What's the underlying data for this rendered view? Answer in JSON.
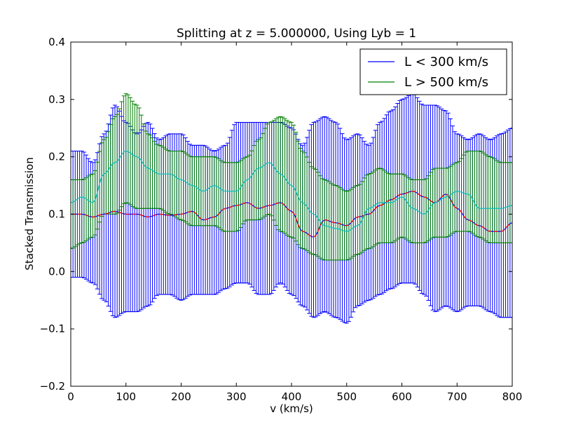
{
  "chart_data": {
    "type": "line",
    "title": "Splitting at z = 5.000000, Using Lyb = 1",
    "xlabel": "v (km/s)",
    "ylabel": "Stacked Transmission",
    "xlim": [
      0,
      800
    ],
    "ylim": [
      -0.2,
      0.4
    ],
    "xticks": [
      0,
      100,
      200,
      300,
      400,
      500,
      600,
      700,
      800
    ],
    "yticks": [
      -0.2,
      -0.1,
      0.0,
      0.1,
      0.2,
      0.3,
      0.4
    ],
    "grid": false,
    "legend_position": "top-right",
    "x": [
      0,
      20,
      40,
      60,
      80,
      100,
      120,
      140,
      160,
      180,
      200,
      220,
      240,
      260,
      280,
      300,
      320,
      340,
      360,
      380,
      400,
      420,
      440,
      460,
      480,
      500,
      520,
      540,
      560,
      580,
      600,
      620,
      640,
      660,
      680,
      700,
      720,
      740,
      760,
      780,
      800
    ],
    "series": [
      {
        "name": "L < 300 km/s",
        "color": "#0000ff",
        "mean": [
          0.1,
          0.1,
          0.095,
          0.1,
          0.105,
          0.1,
          0.1,
          0.095,
          0.1,
          0.098,
          0.1,
          0.105,
          0.09,
          0.095,
          0.11,
          0.115,
          0.12,
          0.11,
          0.115,
          0.12,
          0.105,
          0.07,
          0.06,
          0.09,
          0.085,
          0.08,
          0.095,
          0.1,
          0.115,
          0.125,
          0.135,
          0.14,
          0.13,
          0.12,
          0.135,
          0.11,
          0.09,
          0.08,
          0.07,
          0.07,
          0.085
        ],
        "upper": [
          0.21,
          0.21,
          0.19,
          0.24,
          0.29,
          0.26,
          0.24,
          0.26,
          0.23,
          0.24,
          0.24,
          0.22,
          0.22,
          0.21,
          0.22,
          0.26,
          0.26,
          0.26,
          0.26,
          0.26,
          0.25,
          0.22,
          0.26,
          0.27,
          0.26,
          0.23,
          0.24,
          0.22,
          0.26,
          0.28,
          0.3,
          0.31,
          0.29,
          0.29,
          0.28,
          0.24,
          0.23,
          0.24,
          0.23,
          0.24,
          0.25
        ],
        "lower": [
          -0.01,
          -0.01,
          -0.02,
          -0.05,
          -0.08,
          -0.07,
          -0.07,
          -0.06,
          -0.04,
          -0.04,
          -0.05,
          -0.04,
          -0.04,
          -0.04,
          -0.03,
          -0.02,
          -0.02,
          -0.04,
          -0.04,
          -0.02,
          -0.04,
          -0.06,
          -0.08,
          -0.07,
          -0.08,
          -0.09,
          -0.06,
          -0.05,
          -0.04,
          -0.03,
          -0.02,
          -0.02,
          -0.04,
          -0.07,
          -0.06,
          -0.07,
          -0.06,
          -0.06,
          -0.07,
          -0.08,
          -0.08
        ]
      },
      {
        "name": "L > 500 km/s",
        "color": "#008000",
        "mean": [
          0.12,
          0.13,
          0.12,
          0.17,
          0.19,
          0.21,
          0.2,
          0.18,
          0.17,
          0.17,
          0.16,
          0.15,
          0.14,
          0.15,
          0.14,
          0.14,
          0.16,
          0.18,
          0.19,
          0.17,
          0.15,
          0.12,
          0.1,
          0.08,
          0.075,
          0.07,
          0.08,
          0.11,
          0.12,
          0.12,
          0.13,
          0.11,
          0.1,
          0.12,
          0.13,
          0.14,
          0.135,
          0.11,
          0.11,
          0.11,
          0.115
        ],
        "upper": [
          0.16,
          0.16,
          0.17,
          0.23,
          0.27,
          0.31,
          0.29,
          0.24,
          0.22,
          0.21,
          0.21,
          0.2,
          0.2,
          0.2,
          0.19,
          0.19,
          0.2,
          0.23,
          0.26,
          0.27,
          0.26,
          0.21,
          0.18,
          0.16,
          0.15,
          0.14,
          0.15,
          0.17,
          0.18,
          0.17,
          0.17,
          0.16,
          0.16,
          0.18,
          0.18,
          0.19,
          0.21,
          0.21,
          0.2,
          0.19,
          0.19
        ],
        "lower": [
          0.04,
          0.05,
          0.06,
          0.1,
          0.1,
          0.12,
          0.11,
          0.11,
          0.11,
          0.1,
          0.09,
          0.08,
          0.08,
          0.08,
          0.07,
          0.07,
          0.09,
          0.09,
          0.1,
          0.07,
          0.06,
          0.04,
          0.03,
          0.02,
          0.02,
          0.02,
          0.03,
          0.04,
          0.05,
          0.05,
          0.06,
          0.05,
          0.05,
          0.06,
          0.06,
          0.07,
          0.07,
          0.06,
          0.05,
          0.05,
          0.05
        ]
      }
    ]
  }
}
